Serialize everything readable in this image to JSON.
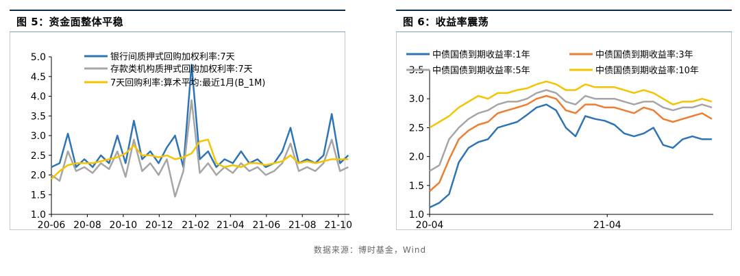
{
  "source": "数据来源：博时基金，Wind",
  "chart_data": [
    {
      "type": "line",
      "title": "图 5：资金面整体平稳",
      "x_ticks": [
        "20-06",
        "20-08",
        "20-10",
        "20-12",
        "21-02",
        "21-04",
        "21-06",
        "21-08",
        "21-10"
      ],
      "ylim": [
        1.0,
        5.0
      ],
      "y_ticks": [
        "1.0",
        "1.5",
        "2.0",
        "2.5",
        "3.0",
        "3.5",
        "4.0",
        "4.5",
        "5.0"
      ],
      "legend_position": "top",
      "series": [
        {
          "name": "银行间质押式回购加权利率:7天",
          "color": "#2e74b5",
          "x": [
            "2020-06-01",
            "2020-06-15",
            "2020-06-29",
            "2020-07-13",
            "2020-07-27",
            "2020-08-10",
            "2020-08-24",
            "2020-09-07",
            "2020-09-21",
            "2020-10-05",
            "2020-10-19",
            "2020-11-02",
            "2020-11-16",
            "2020-11-30",
            "2020-12-14",
            "2020-12-28",
            "2021-01-11",
            "2021-01-25",
            "2021-02-08",
            "2021-02-22",
            "2021-03-08",
            "2021-03-22",
            "2021-04-05",
            "2021-04-19",
            "2021-05-03",
            "2021-05-17",
            "2021-05-31",
            "2021-06-14",
            "2021-06-28",
            "2021-07-12",
            "2021-07-26",
            "2021-08-09",
            "2021-08-23",
            "2021-09-06",
            "2021-09-20",
            "2021-10-04",
            "2021-10-18"
          ],
          "values": [
            2.2,
            2.3,
            3.05,
            2.2,
            2.4,
            2.2,
            2.5,
            2.3,
            3.0,
            2.3,
            3.38,
            2.4,
            2.6,
            2.3,
            2.7,
            3.0,
            2.2,
            4.8,
            2.4,
            2.6,
            2.2,
            2.4,
            2.3,
            2.6,
            2.3,
            2.4,
            2.2,
            2.3,
            2.6,
            3.2,
            2.3,
            2.4,
            2.3,
            2.5,
            3.55,
            2.3,
            2.5
          ]
        },
        {
          "name": "存款类机构质押式回购加权利率:7天",
          "color": "#a5a5a5",
          "x": [
            "2020-06-01",
            "2020-06-15",
            "2020-06-29",
            "2020-07-13",
            "2020-07-27",
            "2020-08-10",
            "2020-08-24",
            "2020-09-07",
            "2020-09-21",
            "2020-10-05",
            "2020-10-19",
            "2020-11-02",
            "2020-11-16",
            "2020-11-30",
            "2020-12-14",
            "2020-12-28",
            "2021-01-11",
            "2021-01-25",
            "2021-02-08",
            "2021-02-22",
            "2021-03-08",
            "2021-03-22",
            "2021-04-05",
            "2021-04-19",
            "2021-05-03",
            "2021-05-17",
            "2021-05-31",
            "2021-06-14",
            "2021-06-28",
            "2021-07-12",
            "2021-07-26",
            "2021-08-09",
            "2021-08-23",
            "2021-09-06",
            "2021-09-20",
            "2021-10-04",
            "2021-10-18"
          ],
          "values": [
            2.0,
            1.85,
            2.6,
            2.1,
            2.2,
            2.05,
            2.3,
            2.15,
            2.6,
            1.95,
            2.9,
            2.1,
            2.3,
            2.0,
            2.4,
            1.45,
            2.1,
            3.9,
            2.05,
            2.3,
            2.0,
            2.2,
            2.05,
            2.3,
            2.1,
            2.2,
            2.0,
            2.1,
            2.3,
            2.8,
            2.1,
            2.2,
            2.1,
            2.3,
            2.9,
            2.1,
            2.2
          ]
        },
        {
          "name": "7天回购利率:算术平均:最近1月(B_1M)",
          "color": "#f5c300",
          "x": [
            "2020-06-01",
            "2020-06-15",
            "2020-06-29",
            "2020-07-13",
            "2020-07-27",
            "2020-08-10",
            "2020-08-24",
            "2020-09-07",
            "2020-09-21",
            "2020-10-05",
            "2020-10-19",
            "2020-11-02",
            "2020-11-16",
            "2020-11-30",
            "2020-12-14",
            "2020-12-28",
            "2021-01-11",
            "2021-01-25",
            "2021-02-08",
            "2021-02-22",
            "2021-03-08",
            "2021-03-22",
            "2021-04-05",
            "2021-04-19",
            "2021-05-03",
            "2021-05-17",
            "2021-05-31",
            "2021-06-14",
            "2021-06-28",
            "2021-07-12",
            "2021-07-26",
            "2021-08-09",
            "2021-08-23",
            "2021-09-06",
            "2021-09-20",
            "2021-10-04",
            "2021-10-18"
          ],
          "values": [
            1.9,
            2.1,
            2.25,
            2.3,
            2.3,
            2.3,
            2.35,
            2.4,
            2.45,
            2.55,
            2.75,
            2.5,
            2.5,
            2.45,
            2.5,
            2.4,
            2.45,
            2.55,
            2.85,
            2.9,
            2.3,
            2.2,
            2.25,
            2.2,
            2.3,
            2.3,
            2.25,
            2.3,
            2.35,
            2.5,
            2.3,
            2.35,
            2.3,
            2.35,
            2.4,
            2.4,
            2.4
          ]
        }
      ]
    },
    {
      "type": "line",
      "title": "图 6：收益率震荡",
      "x_ticks": [
        "20-04",
        "21-04"
      ],
      "ylim": [
        1.0,
        3.5
      ],
      "y_ticks": [
        "1.0",
        "1.5",
        "2.0",
        "2.5",
        "3.0",
        "3.5"
      ],
      "legend_position": "top",
      "series": [
        {
          "name": "中债国债到期收益率:1年",
          "color": "#2e74b5",
          "x": [
            "2020-04-01",
            "2020-04-21",
            "2020-05-11",
            "2020-05-31",
            "2020-06-20",
            "2020-07-10",
            "2020-07-30",
            "2020-08-19",
            "2020-09-08",
            "2020-09-28",
            "2020-10-18",
            "2020-11-07",
            "2020-11-27",
            "2020-12-17",
            "2021-01-06",
            "2021-01-26",
            "2021-02-15",
            "2021-03-07",
            "2021-03-27",
            "2021-04-16",
            "2021-05-06",
            "2021-05-26",
            "2021-06-15",
            "2021-07-05",
            "2021-07-25",
            "2021-08-14",
            "2021-09-03",
            "2021-09-23",
            "2021-10-13",
            "2021-11-02"
          ],
          "values": [
            1.12,
            1.2,
            1.35,
            1.9,
            2.15,
            2.25,
            2.3,
            2.5,
            2.55,
            2.6,
            2.72,
            2.85,
            2.9,
            2.8,
            2.5,
            2.35,
            2.7,
            2.65,
            2.62,
            2.55,
            2.4,
            2.35,
            2.4,
            2.5,
            2.2,
            2.15,
            2.3,
            2.35,
            2.3,
            2.3
          ]
        },
        {
          "name": "中债国债到期收益率:3年",
          "color": "#ed7d31",
          "x": [
            "2020-04-01",
            "2020-04-21",
            "2020-05-11",
            "2020-05-31",
            "2020-06-20",
            "2020-07-10",
            "2020-07-30",
            "2020-08-19",
            "2020-09-08",
            "2020-09-28",
            "2020-10-18",
            "2020-11-07",
            "2020-11-27",
            "2020-12-17",
            "2021-01-06",
            "2021-01-26",
            "2021-02-15",
            "2021-03-07",
            "2021-03-27",
            "2021-04-16",
            "2021-05-06",
            "2021-05-26",
            "2021-06-15",
            "2021-07-05",
            "2021-07-25",
            "2021-08-14",
            "2021-09-03",
            "2021-09-23",
            "2021-10-13",
            "2021-11-02"
          ],
          "values": [
            1.4,
            1.55,
            1.95,
            2.3,
            2.45,
            2.55,
            2.6,
            2.75,
            2.8,
            2.85,
            2.9,
            3.0,
            3.05,
            3.0,
            2.8,
            2.75,
            2.9,
            2.9,
            2.85,
            2.85,
            2.8,
            2.75,
            2.85,
            2.8,
            2.65,
            2.6,
            2.65,
            2.7,
            2.75,
            2.65
          ]
        },
        {
          "name": "中债国债到期收益率:5年",
          "color": "#a5a5a5",
          "x": [
            "2020-04-01",
            "2020-04-21",
            "2020-05-11",
            "2020-05-31",
            "2020-06-20",
            "2020-07-10",
            "2020-07-30",
            "2020-08-19",
            "2020-09-08",
            "2020-09-28",
            "2020-10-18",
            "2020-11-07",
            "2020-11-27",
            "2020-12-17",
            "2021-01-06",
            "2021-01-26",
            "2021-02-15",
            "2021-03-07",
            "2021-03-27",
            "2021-04-16",
            "2021-05-06",
            "2021-05-26",
            "2021-06-15",
            "2021-07-05",
            "2021-07-25",
            "2021-08-14",
            "2021-09-03",
            "2021-09-23",
            "2021-10-13",
            "2021-11-02"
          ],
          "values": [
            1.75,
            1.85,
            2.3,
            2.5,
            2.65,
            2.75,
            2.8,
            2.9,
            2.95,
            2.95,
            3.0,
            3.1,
            3.15,
            3.1,
            2.95,
            2.9,
            3.05,
            3.0,
            3.0,
            3.0,
            2.95,
            2.9,
            2.95,
            2.95,
            2.85,
            2.8,
            2.85,
            2.85,
            2.9,
            2.85
          ]
        },
        {
          "name": "中债国债到期收益率:10年",
          "color": "#f5c300",
          "x": [
            "2020-04-01",
            "2020-04-21",
            "2020-05-11",
            "2020-05-31",
            "2020-06-20",
            "2020-07-10",
            "2020-07-30",
            "2020-08-19",
            "2020-09-08",
            "2020-09-28",
            "2020-10-18",
            "2020-11-07",
            "2020-11-27",
            "2020-12-17",
            "2021-01-06",
            "2021-01-26",
            "2021-02-15",
            "2021-03-07",
            "2021-03-27",
            "2021-04-16",
            "2021-05-06",
            "2021-05-26",
            "2021-06-15",
            "2021-07-05",
            "2021-07-25",
            "2021-08-14",
            "2021-09-03",
            "2021-09-23",
            "2021-10-13",
            "2021-11-02"
          ],
          "values": [
            2.5,
            2.6,
            2.7,
            2.85,
            2.95,
            3.05,
            3.0,
            3.1,
            3.1,
            3.15,
            3.18,
            3.25,
            3.3,
            3.25,
            3.15,
            3.15,
            3.25,
            3.2,
            3.2,
            3.2,
            3.15,
            3.1,
            3.15,
            3.1,
            3.0,
            2.9,
            2.95,
            2.95,
            3.0,
            2.95
          ]
        }
      ]
    }
  ]
}
